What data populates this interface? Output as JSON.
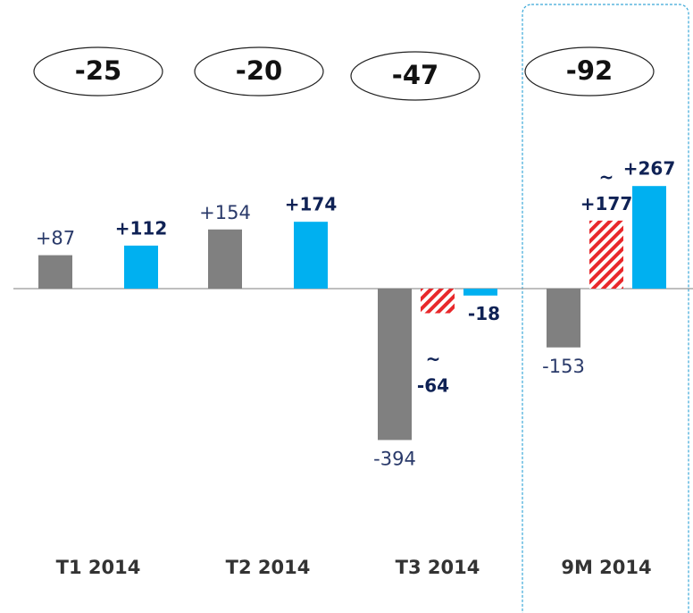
{
  "chart_data": {
    "type": "bar",
    "categories": [
      "T1 2014",
      "T2 2014",
      "T3 2014",
      "9M 2014"
    ],
    "totals": [
      -25,
      -20,
      -47,
      -92
    ],
    "series": [
      {
        "color": "#808080",
        "values": [
          87,
          154,
          -394,
          -153
        ],
        "value_labels": [
          "+87",
          "+154",
          "-394",
          "-153"
        ]
      },
      {
        "color": "#e8282b",
        "hatched": true,
        "values": [
          null,
          null,
          -64,
          177
        ],
        "value_labels": [
          null,
          null,
          "~ -64",
          "~ +177"
        ]
      },
      {
        "color": "#00b0f0",
        "values": [
          112,
          174,
          -18,
          267
        ],
        "value_labels": [
          "+112",
          "+174",
          "-18",
          "+267"
        ]
      }
    ],
    "ylim": [
      -600,
      600
    ]
  }
}
